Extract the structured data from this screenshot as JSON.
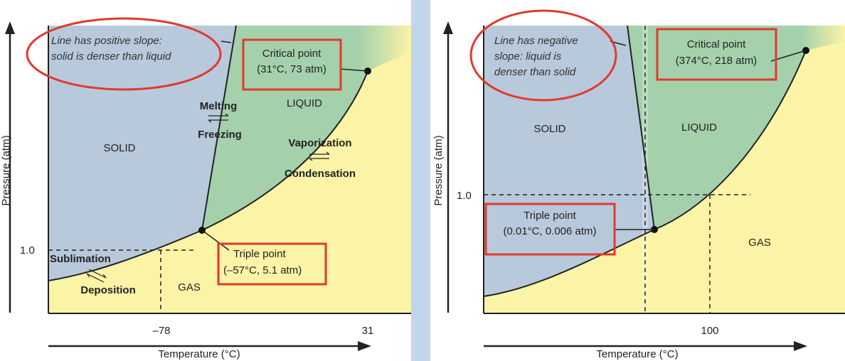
{
  "colors": {
    "solid": "#b8c9dc",
    "liquid": "#a4d1ac",
    "gas": "#fbf3a6",
    "highlight": "#e03a2c",
    "divider": "#c3d5ea"
  },
  "left": {
    "solid_label": "SOLID",
    "liquid_label": "LIQUID",
    "gas_label": "GAS",
    "note_line1": "Line has positive slope:",
    "note_line2": "solid is denser than liquid",
    "critical_line1": "Critical point",
    "critical_line2": "(31°C, 73 atm)",
    "triple_line1": "Triple point",
    "triple_line2": "(–57°C, 5.1 atm)",
    "melting": "Melting",
    "freezing": "Freezing",
    "vaporization": "Vaporization",
    "condensation": "Condensation",
    "sublimation": "Sublimation",
    "deposition": "Deposition",
    "y_tick": "1.0",
    "x_tick_1": "–78",
    "x_tick_2": "31",
    "y_axis_label": "Pressure (atm)",
    "x_axis_label": "Temperature (°C)"
  },
  "right": {
    "solid_label": "SOLID",
    "liquid_label": "LIQUID",
    "gas_label": "GAS",
    "note_line1": "Line has negative",
    "note_line2": "slope: liquid is",
    "note_line3": "denser than solid",
    "critical_line1": "Critical point",
    "critical_line2": "(374°C, 218 atm)",
    "triple_line1": "Triple point",
    "triple_line2": "(0.01°C, 0.006 atm)",
    "y_tick": "1.0",
    "x_tick_1": "100",
    "y_axis_label": "Pressure (atm)",
    "x_axis_label": "Temperature (°C)"
  }
}
